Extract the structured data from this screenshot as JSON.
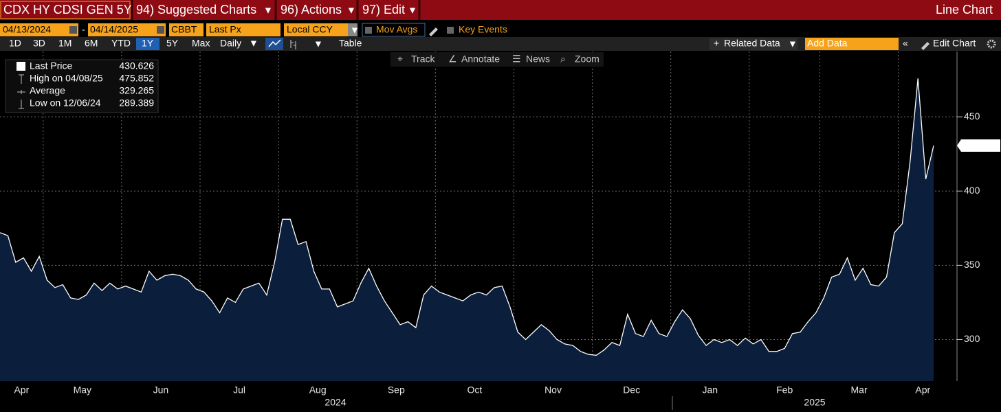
{
  "header": {
    "security": "CDX HY CDSI GEN 5Y",
    "menus": [
      "94) Suggested Charts",
      "96) Actions",
      "97) Edit"
    ],
    "view": "Line Chart"
  },
  "controls": {
    "start_date": "04/13/2024",
    "date_separator": "-",
    "end_date": "04/14/2025",
    "source": "CBBT",
    "field": "Last Px",
    "currency": "Local CCY",
    "mov_avgs": "Mov Avgs",
    "key_events": "Key Events"
  },
  "toolbar": {
    "ranges": [
      "1D",
      "3D",
      "1M",
      "6M",
      "YTD",
      "1Y",
      "5Y",
      "Max"
    ],
    "selected_range": "1Y",
    "frequency": "Daily",
    "table": "Table",
    "related": "Related Data",
    "add_data": "Add Data",
    "edit_chart": "Edit Chart"
  },
  "chart_tools": [
    "Track",
    "Annotate",
    "News",
    "Zoom"
  ],
  "chart_data": {
    "type": "area",
    "color": "#ffffff",
    "fill": "#0b1f3d",
    "categories": [
      "Apr",
      "Apr",
      "Apr",
      "Apr",
      "Apr",
      "Apr",
      "May",
      "May",
      "May",
      "May",
      "May",
      "May",
      "May",
      "May",
      "May",
      "May",
      "Jun",
      "Jun",
      "Jun",
      "Jun",
      "Jun",
      "Jun",
      "Jun",
      "Jun",
      "Jun",
      "Jun",
      "Jul",
      "Jul",
      "Jul",
      "Jul",
      "Jul",
      "Jul",
      "Jul",
      "Jul",
      "Jul",
      "Jul",
      "Aug",
      "Aug",
      "Aug",
      "Aug",
      "Aug",
      "Aug",
      "Aug",
      "Aug",
      "Aug",
      "Aug",
      "Sep",
      "Sep",
      "Sep",
      "Sep",
      "Sep",
      "Sep",
      "Sep",
      "Sep",
      "Sep",
      "Sep",
      "Oct",
      "Oct",
      "Oct",
      "Oct",
      "Oct",
      "Oct",
      "Oct",
      "Oct",
      "Oct",
      "Oct",
      "Nov",
      "Nov",
      "Nov",
      "Nov",
      "Nov",
      "Nov",
      "Nov",
      "Nov",
      "Nov",
      "Nov",
      "Dec",
      "Dec",
      "Dec",
      "Dec",
      "Dec",
      "Dec",
      "Dec",
      "Dec",
      "Dec",
      "Dec",
      "Jan",
      "Jan",
      "Jan",
      "Jan",
      "Jan",
      "Jan",
      "Jan",
      "Jan",
      "Jan",
      "Jan",
      "Feb",
      "Feb",
      "Feb",
      "Feb",
      "Feb",
      "Feb",
      "Feb",
      "Feb",
      "Feb",
      "Mar",
      "Mar",
      "Mar",
      "Mar",
      "Mar",
      "Mar",
      "Mar",
      "Mar",
      "Mar",
      "Mar",
      "Apr",
      "Apr",
      "Apr",
      "Apr",
      "Apr"
    ],
    "values": [
      372,
      370,
      352,
      355,
      346,
      356,
      340,
      335,
      337,
      328,
      327,
      330,
      338,
      333,
      338,
      334,
      336,
      334,
      332,
      346,
      340,
      343,
      344,
      343,
      340,
      334,
      332,
      326,
      318,
      328,
      325,
      334,
      336,
      338,
      330,
      352,
      381,
      381,
      364,
      366,
      346,
      334,
      334,
      322,
      324,
      326,
      338,
      348,
      336,
      326,
      318,
      310,
      312,
      308,
      330,
      336,
      332,
      330,
      328,
      326,
      330,
      332,
      330,
      335,
      336,
      322,
      305,
      300,
      305,
      310,
      306,
      300,
      297,
      296,
      292,
      290,
      289.389,
      293,
      298,
      296,
      317,
      304,
      302,
      313,
      304,
      302,
      312,
      320,
      314,
      303,
      296,
      300,
      298,
      300,
      296,
      301,
      297,
      300,
      292,
      292,
      294,
      304,
      305,
      312,
      318,
      328,
      342,
      344,
      355,
      340,
      348,
      337,
      336,
      342,
      372,
      378,
      420,
      475.852,
      408,
      430.626
    ],
    "years": [
      "2024",
      "2025"
    ],
    "ylim": [
      272,
      494
    ],
    "yticks": [
      300,
      350,
      400,
      450
    ],
    "grid": true,
    "stats": [
      {
        "label": "Last Price",
        "value": 430.626
      },
      {
        "label": "High on 04/08/25",
        "value": 475.852
      },
      {
        "label": "Average",
        "value": 329.265
      },
      {
        "label": "Low on 12/06/24",
        "value": 289.389
      }
    ]
  }
}
